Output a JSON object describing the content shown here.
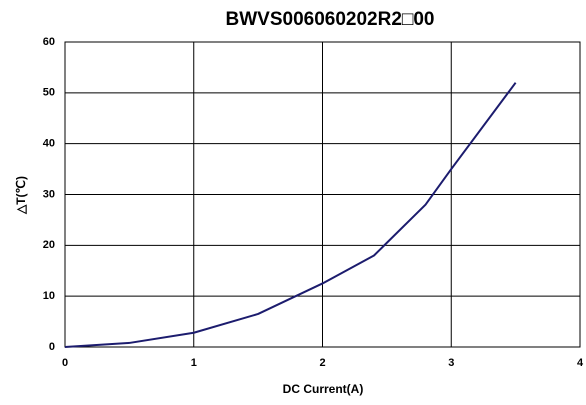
{
  "chart_data": {
    "type": "line",
    "title": "BWVS006060202R2□00",
    "xlabel": "DC Current(A)",
    "ylabel": "△T(℃)",
    "x": [
      0,
      0.5,
      1,
      1.5,
      2,
      2.4,
      2.8,
      3,
      3.5
    ],
    "series": [
      {
        "name": "ΔT",
        "color": "#1c1c6e",
        "values": [
          0,
          0.8,
          2.8,
          6.5,
          12.5,
          18,
          28,
          35,
          52
        ]
      }
    ],
    "xlim": [
      0,
      4
    ],
    "xticks": [
      0,
      1,
      2,
      3,
      4
    ],
    "ylim": [
      0,
      60
    ],
    "yticks": [
      0,
      10,
      20,
      30,
      40,
      50,
      60
    ],
    "grid": true
  }
}
